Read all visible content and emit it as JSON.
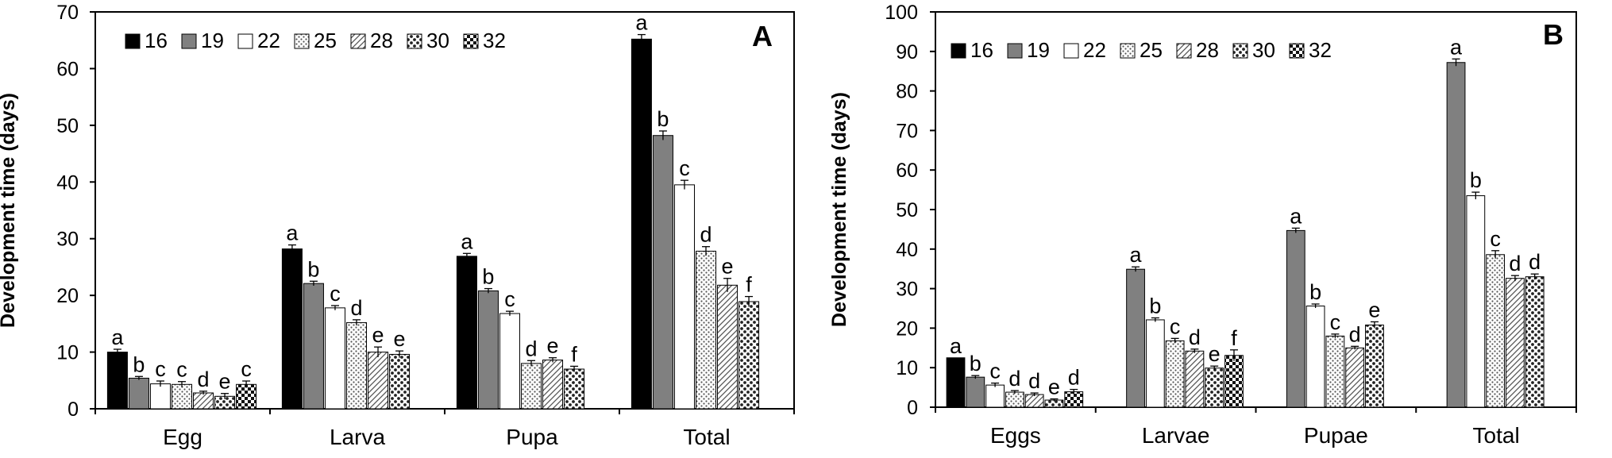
{
  "chart_data": [
    {
      "type": "bar",
      "panel_label": "A",
      "ylabel": "Development time (days)",
      "ylim": [
        0,
        70
      ],
      "yticks": [
        0,
        10,
        20,
        30,
        40,
        50,
        60,
        70
      ],
      "categories": [
        "Egg",
        "Larva",
        "Pupa",
        "Total"
      ],
      "legend": {
        "position": "top-left",
        "entries": [
          "16",
          "19",
          "22",
          "25",
          "28",
          "30",
          "32"
        ]
      },
      "series": [
        {
          "name": "16",
          "values": [
            10.0,
            28.2,
            26.9,
            65.2
          ],
          "errors": [
            0.5,
            0.7,
            0.5,
            0.8
          ],
          "letters": [
            "a",
            "a",
            "a",
            "a"
          ]
        },
        {
          "name": "19",
          "values": [
            5.4,
            22.1,
            20.8,
            48.2
          ],
          "errors": [
            0.3,
            0.4,
            0.4,
            0.8
          ],
          "letters": [
            "b",
            "b",
            "b",
            "b"
          ]
        },
        {
          "name": "22",
          "values": [
            4.4,
            17.8,
            16.8,
            39.5
          ],
          "errors": [
            0.5,
            0.4,
            0.4,
            0.8
          ],
          "letters": [
            "c",
            "c",
            "c",
            "c"
          ]
        },
        {
          "name": "25",
          "values": [
            4.3,
            15.2,
            8.0,
            27.8
          ],
          "errors": [
            0.5,
            0.5,
            0.5,
            0.8
          ],
          "letters": [
            "c",
            "d",
            "d",
            "d"
          ]
        },
        {
          "name": "28",
          "values": [
            2.8,
            10.0,
            8.6,
            21.8
          ],
          "errors": [
            0.3,
            0.9,
            0.4,
            1.2
          ],
          "letters": [
            "d",
            "e",
            "e",
            "e"
          ]
        },
        {
          "name": "30",
          "values": [
            2.2,
            9.6,
            7.0,
            18.9
          ],
          "errors": [
            0.5,
            0.6,
            0.5,
            0.9
          ],
          "letters": [
            "e",
            "e",
            "f",
            "f"
          ]
        },
        {
          "name": "32",
          "values": [
            4.3,
            null,
            null,
            null
          ],
          "errors": [
            0.6,
            null,
            null,
            null
          ],
          "letters": [
            "c",
            null,
            null,
            null
          ]
        }
      ]
    },
    {
      "type": "bar",
      "panel_label": "B",
      "ylabel": "Development time (days)",
      "ylim": [
        0,
        100
      ],
      "yticks": [
        0,
        10,
        20,
        30,
        40,
        50,
        60,
        70,
        80,
        90,
        100
      ],
      "categories": [
        "Eggs",
        "Larvae",
        "Pupae",
        "Total"
      ],
      "legend": {
        "position": "top-left",
        "entries": [
          "16",
          "19",
          "22",
          "25",
          "28",
          "30",
          "32"
        ]
      },
      "series": [
        {
          "name": "16",
          "values": [
            12.5,
            null,
            null,
            null
          ],
          "errors": [
            0.0,
            null,
            null,
            null
          ],
          "letters": [
            "a",
            null,
            null,
            null
          ]
        },
        {
          "name": "19",
          "values": [
            7.6,
            34.9,
            44.7,
            87.2
          ],
          "errors": [
            0.4,
            0.6,
            0.6,
            0.9
          ],
          "letters": [
            "b",
            "a",
            "a",
            "a"
          ]
        },
        {
          "name": "22",
          "values": [
            5.6,
            22.1,
            25.6,
            53.5
          ],
          "errors": [
            0.5,
            0.5,
            0.5,
            0.9
          ],
          "letters": [
            "c",
            "b",
            "b",
            "b"
          ]
        },
        {
          "name": "25",
          "values": [
            3.8,
            16.8,
            18.0,
            38.6
          ],
          "errors": [
            0.4,
            0.6,
            0.5,
            1.0
          ],
          "letters": [
            "d",
            "c",
            "c",
            "c"
          ]
        },
        {
          "name": "28",
          "values": [
            3.2,
            14.2,
            15.0,
            32.6
          ],
          "errors": [
            0.4,
            0.5,
            0.4,
            0.7
          ],
          "letters": [
            "d",
            "d",
            "d",
            "d"
          ]
        },
        {
          "name": "30",
          "values": [
            1.8,
            9.9,
            20.8,
            33.0
          ],
          "errors": [
            0.3,
            0.5,
            0.8,
            0.7
          ],
          "letters": [
            "e",
            "e",
            "e",
            "d"
          ]
        },
        {
          "name": "32",
          "values": [
            3.9,
            13.1,
            null,
            null
          ],
          "errors": [
            0.6,
            1.4,
            null,
            null
          ],
          "letters": [
            "d",
            "f",
            null,
            null
          ]
        }
      ]
    }
  ]
}
